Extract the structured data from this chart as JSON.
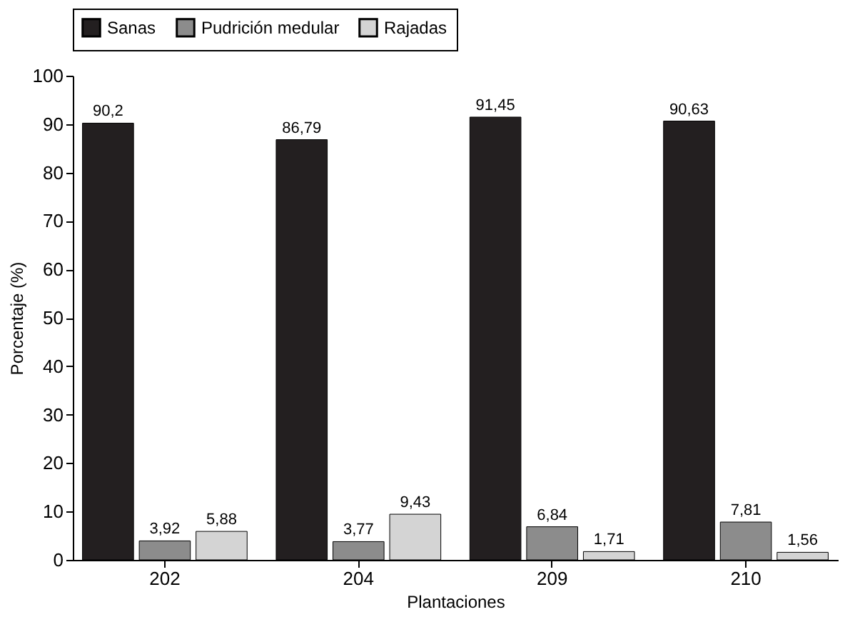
{
  "chart_data": {
    "type": "bar",
    "xlabel": "Plantaciones",
    "ylabel": "Porcentaje (%)",
    "categories": [
      "202",
      "204",
      "209",
      "210"
    ],
    "series": [
      {
        "name": "Sanas",
        "color": "#231f20",
        "values": [
          90.2,
          86.79,
          91.45,
          90.63
        ],
        "value_labels": [
          "90,2",
          "86,79",
          "91,45",
          "90,63"
        ]
      },
      {
        "name": "Pudrición medular",
        "color": "#8c8c8c",
        "values": [
          3.92,
          3.77,
          6.84,
          7.81
        ],
        "value_labels": [
          "3,92",
          "3,77",
          "6,84",
          "7,81"
        ]
      },
      {
        "name": "Rajadas",
        "color": "#d4d4d4",
        "values": [
          5.88,
          9.43,
          1.71,
          1.56
        ],
        "value_labels": [
          "5,88",
          "9,43",
          "1,71",
          "1,56"
        ]
      }
    ],
    "ylim": [
      0,
      100
    ],
    "yticks": [
      0,
      10,
      20,
      30,
      40,
      50,
      60,
      70,
      80,
      90,
      100
    ],
    "grid": false,
    "legend": "top"
  }
}
